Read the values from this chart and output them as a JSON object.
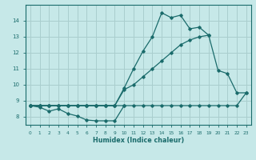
{
  "xlabel": "Humidex (Indice chaleur)",
  "background_color": "#c6e8e8",
  "grid_color": "#aacece",
  "line_color": "#1a6b6b",
  "series": [
    {
      "x": [
        0,
        1,
        2,
        3,
        4,
        5,
        6,
        7,
        8,
        9,
        10,
        11,
        12,
        13,
        14,
        15,
        16,
        17,
        18,
        19,
        20,
        21,
        22,
        23
      ],
      "y": [
        8.7,
        8.7,
        8.7,
        8.7,
        8.7,
        8.7,
        8.7,
        8.7,
        8.7,
        8.7,
        8.7,
        8.7,
        8.7,
        8.7,
        8.7,
        8.7,
        8.7,
        8.7,
        8.7,
        8.7,
        8.7,
        8.7,
        8.7,
        9.5
      ]
    },
    {
      "x": [
        0,
        1,
        2,
        3,
        4,
        5,
        6,
        7,
        8,
        9,
        10
      ],
      "y": [
        8.7,
        8.6,
        8.35,
        8.5,
        8.2,
        8.05,
        7.8,
        7.75,
        7.75,
        7.75,
        8.7
      ]
    },
    {
      "x": [
        0,
        1,
        2,
        3,
        4,
        5,
        6,
        7,
        8,
        9,
        10,
        11,
        12,
        13,
        14,
        15,
        16,
        17,
        18,
        19,
        20,
        21,
        22,
        23
      ],
      "y": [
        8.7,
        8.7,
        8.7,
        8.7,
        8.7,
        8.7,
        8.7,
        8.7,
        8.7,
        8.7,
        9.7,
        10.0,
        10.5,
        11.0,
        11.5,
        12.0,
        12.5,
        12.8,
        13.0,
        13.1,
        10.9,
        10.7,
        9.5,
        9.5
      ]
    },
    {
      "x": [
        0,
        1,
        2,
        3,
        4,
        5,
        6,
        7,
        8,
        9,
        10,
        11,
        12,
        13,
        14,
        15,
        16,
        17,
        18,
        19
      ],
      "y": [
        8.7,
        8.7,
        8.7,
        8.7,
        8.7,
        8.7,
        8.7,
        8.7,
        8.7,
        8.7,
        9.8,
        11.0,
        12.1,
        13.0,
        14.5,
        14.2,
        14.35,
        13.5,
        13.6,
        13.1
      ]
    }
  ],
  "xlim": [
    -0.5,
    23.5
  ],
  "ylim": [
    7.5,
    15.0
  ],
  "yticks": [
    8,
    9,
    10,
    11,
    12,
    13,
    14
  ],
  "xticks": [
    0,
    1,
    2,
    3,
    4,
    5,
    6,
    7,
    8,
    9,
    10,
    11,
    12,
    13,
    14,
    15,
    16,
    17,
    18,
    19,
    20,
    21,
    22,
    23
  ]
}
